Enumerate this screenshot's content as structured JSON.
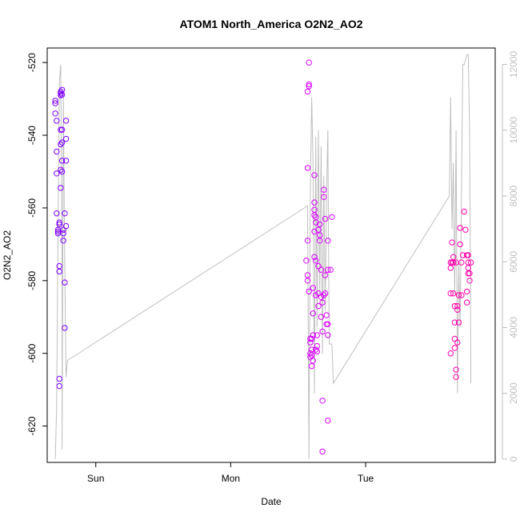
{
  "chart_data": {
    "type": "scatter",
    "title": "ATOM1 North_America O2N2_AO2",
    "xlabel": "Date",
    "ylabel": "O2N2_AO2",
    "x_ticks": [
      "Sun",
      "Mon",
      "Tue"
    ],
    "x_tick_days": [
      1,
      2,
      3
    ],
    "xlim_days": [
      0.64,
      3.96
    ],
    "ylim": [
      -630,
      -516
    ],
    "y_ticks": [
      -620,
      -600,
      -580,
      -560,
      -540,
      -520
    ],
    "y2lim": [
      -100,
      12500
    ],
    "y2_ticks": [
      0,
      2000,
      4000,
      6000,
      8000,
      10000,
      12000
    ],
    "grid": false,
    "scatter_series": [
      {
        "color": "#7f00ff",
        "points": [
          [
            0.7,
            -530.5
          ],
          [
            0.7,
            -531.2
          ],
          [
            0.7,
            -534
          ],
          [
            0.71,
            -536
          ],
          [
            0.71,
            -544.5
          ],
          [
            0.71,
            -550.5
          ],
          [
            0.71,
            -561.5
          ],
          [
            0.72,
            -566
          ],
          [
            0.72,
            -566.5
          ],
          [
            0.72,
            -567
          ],
          [
            0.73,
            -576
          ],
          [
            0.73,
            -577.5
          ],
          [
            0.73,
            -564
          ],
          [
            0.73,
            -564.5
          ],
          [
            0.73,
            -607
          ],
          [
            0.73,
            -609
          ],
          [
            0.74,
            -554.5
          ],
          [
            0.74,
            -549.5
          ],
          [
            0.74,
            -538.5
          ],
          [
            0.74,
            -542.5
          ],
          [
            0.74,
            -528
          ],
          [
            0.74,
            -528.5
          ],
          [
            0.74,
            -529
          ],
          [
            0.75,
            -527.5
          ],
          [
            0.75,
            -528.8
          ],
          [
            0.75,
            -538.5
          ],
          [
            0.75,
            -542
          ],
          [
            0.75,
            -547
          ],
          [
            0.75,
            -550
          ],
          [
            0.76,
            -566
          ],
          [
            0.76,
            -567
          ],
          [
            0.76,
            -569
          ],
          [
            0.77,
            -561.5
          ],
          [
            0.77,
            -580.5
          ],
          [
            0.77,
            -593
          ],
          [
            0.78,
            -565
          ],
          [
            0.78,
            -547
          ],
          [
            0.78,
            -541
          ],
          [
            0.78,
            -536
          ]
        ]
      },
      {
        "color": "#d900ff",
        "points": [
          [
            2.56,
            -574.5
          ],
          [
            2.57,
            -578.5
          ],
          [
            2.57,
            -580
          ],
          [
            2.57,
            -569
          ],
          [
            2.57,
            -549
          ],
          [
            2.57,
            -528
          ],
          [
            2.58,
            -526
          ],
          [
            2.58,
            -526.5
          ],
          [
            2.58,
            -520
          ],
          [
            2.58,
            -583
          ],
          [
            2.59,
            -596
          ],
          [
            2.59,
            -597
          ],
          [
            2.59,
            -600
          ],
          [
            2.59,
            -601
          ],
          [
            2.6,
            -603.5
          ],
          [
            2.6,
            -599
          ],
          [
            2.6,
            -600.5
          ],
          [
            2.6,
            -596
          ],
          [
            2.61,
            -602
          ],
          [
            2.61,
            -595
          ],
          [
            2.61,
            -589
          ],
          [
            2.61,
            -582
          ],
          [
            2.62,
            -573.5
          ],
          [
            2.62,
            -566.5
          ],
          [
            2.62,
            -562
          ],
          [
            2.62,
            -558.5
          ],
          [
            2.62,
            -551
          ],
          [
            2.62,
            -560.5
          ],
          [
            2.63,
            -562.5
          ],
          [
            2.63,
            -564
          ],
          [
            2.63,
            -574.5
          ],
          [
            2.63,
            -584
          ],
          [
            2.63,
            -599
          ],
          [
            2.64,
            -595
          ],
          [
            2.64,
            -598
          ],
          [
            2.64,
            -599.5
          ],
          [
            2.65,
            -587
          ],
          [
            2.65,
            -583.5
          ],
          [
            2.65,
            -576
          ],
          [
            2.65,
            -566
          ],
          [
            2.66,
            -567.5
          ],
          [
            2.66,
            -564.5
          ],
          [
            2.66,
            -569
          ],
          [
            2.67,
            -577
          ],
          [
            2.67,
            -584.5
          ],
          [
            2.67,
            -590
          ],
          [
            2.68,
            -594
          ],
          [
            2.68,
            -613
          ],
          [
            2.68,
            -627
          ],
          [
            2.68,
            -586
          ],
          [
            2.69,
            -584
          ],
          [
            2.69,
            -555
          ],
          [
            2.69,
            -557
          ],
          [
            2.7,
            -563
          ],
          [
            2.7,
            -578.5
          ],
          [
            2.7,
            -583.5
          ],
          [
            2.71,
            -589.5
          ],
          [
            2.71,
            -592
          ],
          [
            2.72,
            -595
          ],
          [
            2.72,
            -618.5
          ],
          [
            2.72,
            -569
          ],
          [
            2.72,
            -577
          ],
          [
            2.72,
            -592
          ],
          [
            2.74,
            -577
          ],
          [
            2.75,
            -562.5
          ]
        ]
      },
      {
        "color": "#ff00aa",
        "points": [
          [
            3.63,
            -575
          ],
          [
            3.63,
            -583.5
          ],
          [
            3.63,
            -600
          ],
          [
            3.63,
            -576.5
          ],
          [
            3.64,
            -575
          ],
          [
            3.64,
            -569.5
          ],
          [
            3.65,
            -583.5
          ],
          [
            3.65,
            -575
          ],
          [
            3.65,
            -573.5
          ],
          [
            3.66,
            -587
          ],
          [
            3.66,
            -598.5
          ],
          [
            3.66,
            -591.5
          ],
          [
            3.66,
            -596
          ],
          [
            3.67,
            -575
          ],
          [
            3.67,
            -604.5
          ],
          [
            3.67,
            -606.5
          ],
          [
            3.68,
            -597
          ],
          [
            3.68,
            -588
          ],
          [
            3.68,
            -587
          ],
          [
            3.69,
            -591.5
          ],
          [
            3.69,
            -584
          ],
          [
            3.7,
            -570
          ],
          [
            3.7,
            -565.5
          ],
          [
            3.71,
            -584
          ],
          [
            3.71,
            -575
          ],
          [
            3.72,
            -573
          ],
          [
            3.73,
            -561
          ],
          [
            3.74,
            -566
          ],
          [
            3.75,
            -573
          ],
          [
            3.75,
            -586
          ],
          [
            3.75,
            -583
          ],
          [
            3.76,
            -578
          ],
          [
            3.76,
            -576.5
          ],
          [
            3.76,
            -573
          ],
          [
            3.76,
            -575
          ],
          [
            3.77,
            -580
          ],
          [
            3.77,
            -578
          ],
          [
            3.78,
            -575
          ]
        ]
      }
    ],
    "line_series": {
      "color": "#bfbfbf",
      "axis": "right",
      "points": [
        [
          0.7,
          0
        ],
        [
          0.71,
          1600
        ],
        [
          0.72,
          6800
        ],
        [
          0.73,
          11500
        ],
        [
          0.74,
          12000
        ],
        [
          0.75,
          5500
        ],
        [
          0.75,
          300
        ],
        [
          0.76,
          11000
        ],
        [
          0.77,
          6000
        ],
        [
          0.78,
          2500
        ],
        [
          0.79,
          3000
        ],
        [
          2.57,
          7700
        ],
        [
          2.58,
          0
        ],
        [
          2.59,
          8000
        ],
        [
          2.6,
          11000
        ],
        [
          2.61,
          9000
        ],
        [
          2.62,
          2000
        ],
        [
          2.63,
          9800
        ],
        [
          2.64,
          4000
        ],
        [
          2.65,
          10000
        ],
        [
          2.66,
          5000
        ],
        [
          2.67,
          9500
        ],
        [
          2.68,
          3200
        ],
        [
          2.69,
          8600
        ],
        [
          2.7,
          4500
        ],
        [
          2.71,
          8000
        ],
        [
          2.72,
          10000
        ],
        [
          2.73,
          3500
        ],
        [
          2.75,
          3500
        ],
        [
          2.76,
          2300
        ],
        [
          3.62,
          8000
        ],
        [
          3.63,
          11000
        ],
        [
          3.64,
          7000
        ],
        [
          3.65,
          9000
        ],
        [
          3.66,
          5000
        ],
        [
          3.67,
          10000
        ],
        [
          3.68,
          2000
        ],
        [
          3.69,
          6000
        ],
        [
          3.7,
          4000
        ],
        [
          3.71,
          8000
        ],
        [
          3.72,
          12000
        ],
        [
          3.73,
          12000
        ],
        [
          3.75,
          12300
        ],
        [
          3.76,
          12300
        ],
        [
          3.77,
          10000
        ],
        [
          3.78,
          2300
        ]
      ]
    }
  }
}
